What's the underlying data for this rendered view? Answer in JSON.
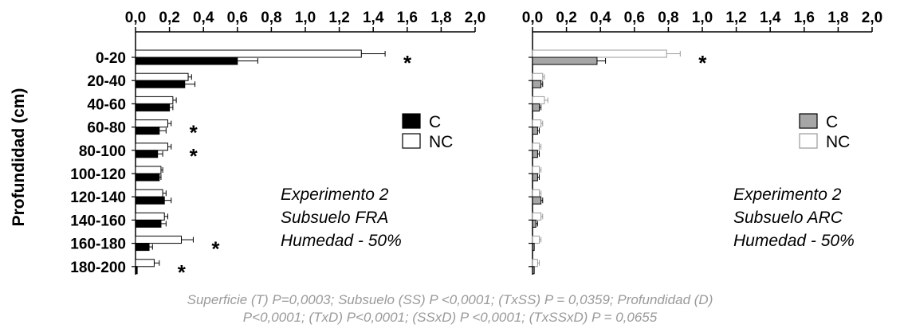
{
  "chart_data": [
    {
      "type": "bar",
      "orientation": "horizontal",
      "xlim": [
        0,
        2.0
      ],
      "xticks": [
        "0,0",
        "0,2",
        "0,4",
        "0,6",
        "0,8",
        "1,0",
        "1,2",
        "1,4",
        "1,6",
        "1,8",
        "2,0"
      ],
      "xtick_values": [
        0,
        0.2,
        0.4,
        0.6,
        0.8,
        1.0,
        1.2,
        1.4,
        1.6,
        1.8,
        2.0
      ],
      "xaxis_position": "top",
      "ylabel": "Profundidad (cm)",
      "categories": [
        "0-20",
        "20-40",
        "40-60",
        "60-80",
        "80-100",
        "100-120",
        "120-140",
        "140-160",
        "160-180",
        "180-200"
      ],
      "series": [
        {
          "name": "C",
          "color": "#000000",
          "values": [
            0.6,
            0.29,
            0.2,
            0.14,
            0.13,
            0.14,
            0.17,
            0.15,
            0.08,
            0.01
          ],
          "errors": [
            0.12,
            0.06,
            0.02,
            0.04,
            0.03,
            0.01,
            0.04,
            0.03,
            0.02,
            0.0
          ]
        },
        {
          "name": "NC",
          "color": "#ffffff",
          "values": [
            1.33,
            0.31,
            0.22,
            0.19,
            0.19,
            0.15,
            0.16,
            0.17,
            0.27,
            0.11
          ],
          "errors": [
            0.14,
            0.02,
            0.02,
            0.02,
            0.02,
            0.01,
            0.02,
            0.02,
            0.07,
            0.03
          ]
        }
      ],
      "significant": [
        "0-20",
        "60-80",
        "80-100",
        "160-180",
        "180-200"
      ],
      "significance_marker": "*",
      "legend": {
        "position": "right",
        "entries": [
          "C",
          "NC"
        ]
      },
      "annotation": [
        "Experimento 2",
        "Subsuelo FRA",
        "Humedad - 50%"
      ],
      "grid": false
    },
    {
      "type": "bar",
      "orientation": "horizontal",
      "xlim": [
        0,
        2.0
      ],
      "xticks": [
        "0,0",
        "0,2",
        "0,4",
        "0,6",
        "0,8",
        "1,0",
        "1,2",
        "1,4",
        "1,6",
        "1,8",
        "2,0"
      ],
      "xtick_values": [
        0,
        0.2,
        0.4,
        0.6,
        0.8,
        1.0,
        1.2,
        1.4,
        1.6,
        1.8,
        2.0
      ],
      "xaxis_position": "top",
      "categories": [
        "0-20",
        "20-40",
        "40-60",
        "60-80",
        "80-100",
        "100-120",
        "120-140",
        "140-160",
        "160-180",
        "180-200"
      ],
      "series": [
        {
          "name": "C",
          "color": "#a6a6a6",
          "values": [
            0.38,
            0.05,
            0.04,
            0.03,
            0.03,
            0.03,
            0.05,
            0.02,
            0.01,
            0.01
          ],
          "errors": [
            0.05,
            0.01,
            0.01,
            0.01,
            0.01,
            0.01,
            0.01,
            0.01,
            0.0,
            0.0
          ]
        },
        {
          "name": "NC",
          "color": "#ffffff",
          "values": [
            0.79,
            0.06,
            0.07,
            0.05,
            0.04,
            0.04,
            0.04,
            0.05,
            0.04,
            0.03
          ],
          "errors": [
            0.08,
            0.01,
            0.02,
            0.01,
            0.01,
            0.01,
            0.01,
            0.01,
            0.01,
            0.01
          ]
        }
      ],
      "significant": [
        "0-20"
      ],
      "significance_marker": "*",
      "legend": {
        "position": "right",
        "entries": [
          "C",
          "NC"
        ]
      },
      "annotation": [
        "Experimento 2",
        "Subsuelo ARC",
        "Humedad - 50%"
      ],
      "grid": false
    }
  ],
  "footer": {
    "line1": "Superficie (T) P=0,0003; Subsuelo (SS) P <0,0001;  (TxSS) P = 0,0359;  Profundidad (D)",
    "line2": "P<0,0001; (TxD) P<0,0001; (SSxD) P  <0,0001;  (TxSSxD) P = 0,0655"
  }
}
